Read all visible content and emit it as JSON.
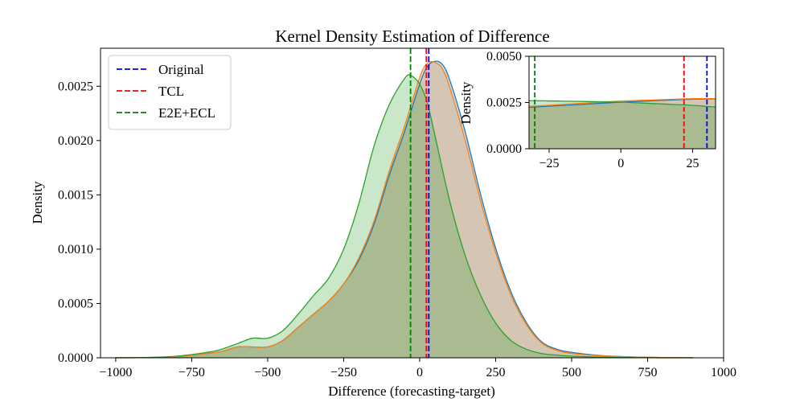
{
  "chart_data": {
    "type": "area",
    "title": "Kernel Density Estimation of Difference",
    "xlabel": "Difference (forecasting-target)",
    "ylabel": "Density",
    "xlim": [
      -1050,
      1000
    ],
    "ylim": [
      0,
      0.00285
    ],
    "xticks": [
      -1000,
      -750,
      -500,
      -250,
      0,
      250,
      500,
      750,
      1000
    ],
    "xtick_labels": [
      "−1000",
      "−750",
      "−500",
      "−250",
      "0",
      "250",
      "500",
      "750",
      "1000"
    ],
    "yticks": [
      0,
      0.0005,
      0.001,
      0.0015,
      0.002,
      0.0025
    ],
    "ytick_labels": [
      "0.0000",
      "0.0005",
      "0.0010",
      "0.0015",
      "0.0020",
      "0.0025"
    ],
    "grid": false,
    "legend_position": "upper-left",
    "series": [
      {
        "color": "#1f77b4",
        "x": [
          -1000,
          -900,
          -800,
          -700,
          -650,
          -600,
          -550,
          -500,
          -450,
          -400,
          -350,
          -300,
          -250,
          -200,
          -150,
          -100,
          -50,
          0,
          25,
          50,
          75,
          100,
          150,
          200,
          250,
          300,
          350,
          400,
          450,
          500,
          600,
          700,
          800,
          900
        ],
        "y": [
          0,
          3e-06,
          1e-05,
          4e-05,
          6e-05,
          0.0001,
          0.0001,
          0.0001,
          0.00016,
          0.00028,
          0.0004,
          0.00052,
          0.00068,
          0.0009,
          0.00123,
          0.00168,
          0.00208,
          0.00252,
          0.00268,
          0.00273,
          0.0027,
          0.00255,
          0.00208,
          0.00151,
          0.00101,
          0.00061,
          0.00033,
          0.00015,
          8e-05,
          5e-05,
          2e-05,
          8e-06,
          3e-06,
          0
        ]
      },
      {
        "color": "#ff7f0e",
        "x": [
          -1000,
          -900,
          -800,
          -700,
          -650,
          -600,
          -550,
          -500,
          -450,
          -400,
          -350,
          -300,
          -250,
          -200,
          -150,
          -100,
          -50,
          0,
          25,
          50,
          75,
          100,
          150,
          200,
          250,
          300,
          350,
          400,
          450,
          500,
          600,
          700,
          800,
          900
        ],
        "y": [
          0,
          3e-06,
          1e-05,
          4e-05,
          6e-05,
          0.0001,
          0.0001,
          0.0001,
          0.00016,
          0.00028,
          0.0004,
          0.00052,
          0.00068,
          0.00092,
          0.00126,
          0.00172,
          0.00213,
          0.00258,
          0.00271,
          0.00272,
          0.00266,
          0.00248,
          0.002,
          0.00145,
          0.00097,
          0.00058,
          0.00031,
          0.00014,
          7e-05,
          4e-05,
          1.8e-05,
          7e-06,
          3e-06,
          0
        ]
      },
      {
        "color": "#2ca02c",
        "x": [
          -1000,
          -900,
          -800,
          -700,
          -650,
          -600,
          -550,
          -500,
          -450,
          -400,
          -350,
          -300,
          -250,
          -200,
          -150,
          -100,
          -50,
          -30,
          0,
          25,
          50,
          100,
          150,
          200,
          250,
          300,
          350,
          400,
          450,
          500,
          600,
          700,
          800,
          900
        ],
        "y": [
          0,
          3e-06,
          1.5e-05,
          5e-05,
          8e-05,
          0.00013,
          0.00018,
          0.00018,
          0.00025,
          0.0004,
          0.00057,
          0.00073,
          0.001,
          0.00142,
          0.00195,
          0.00233,
          0.00257,
          0.0026,
          0.00252,
          0.00235,
          0.00205,
          0.00143,
          0.00094,
          0.00058,
          0.00032,
          0.00016,
          8e-05,
          4e-05,
          2.5e-05,
          1.5e-05,
          6e-06,
          2e-06,
          0,
          0
        ]
      }
    ],
    "vlines": [
      {
        "name": "Original",
        "color": "#0000ff",
        "x": 30
      },
      {
        "name": "TCL",
        "color": "#ff0000",
        "x": 22
      },
      {
        "name": "E2E+ECL",
        "color": "#008000",
        "x": -30
      }
    ],
    "inset": {
      "ylabel": "Density",
      "xlim": [
        -32,
        33
      ],
      "ylim": [
        0,
        0.005
      ],
      "xticks": [
        -25,
        0,
        25
      ],
      "xtick_labels": [
        "−25",
        "0",
        "25"
      ],
      "yticks": [
        0,
        0.0025,
        0.005
      ],
      "ytick_labels": [
        "0.0000",
        "0.0025",
        "0.0050"
      ]
    }
  }
}
